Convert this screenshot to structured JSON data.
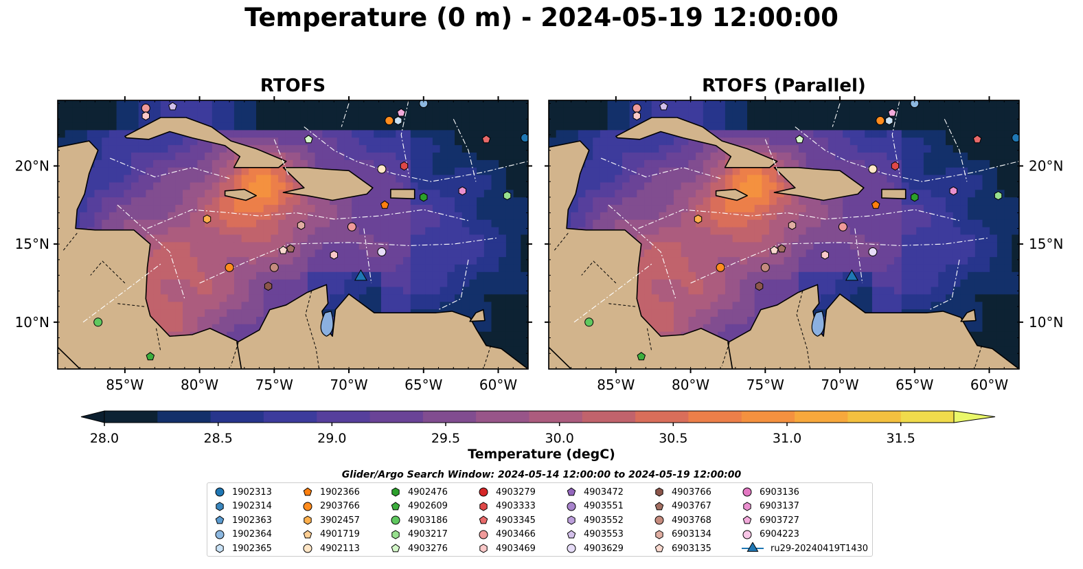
{
  "figure": {
    "title": "Temperature (0 m) - 2024-05-19 12:00:00",
    "colorbar_label": "Temperature (degC)",
    "search_window": "Glider/Argo Search Window: 2024-05-14 12:00:00 to 2024-05-19 12:00:00",
    "land_color": "#d2b48c",
    "lake_color": "#8bb0e0"
  },
  "chart_data": [
    {
      "type": "heatmap",
      "title": "RTOFS",
      "lon_range": [
        -89.5,
        -58
      ],
      "lat_range": [
        7,
        24.2
      ],
      "xticks": [
        -85,
        -80,
        -75,
        -70,
        -65,
        -60
      ],
      "xtick_labels": [
        "85°W",
        "80°W",
        "75°W",
        "70°W",
        "65°W",
        "60°W"
      ],
      "yticks": [
        10,
        15,
        20
      ],
      "ytick_labels": [
        "10°N",
        "15°N",
        "20°N"
      ]
    },
    {
      "type": "heatmap",
      "title": "RTOFS (Parallel)",
      "lon_range": [
        -89.5,
        -58
      ],
      "lat_range": [
        7,
        24.2
      ],
      "xticks": [
        -85,
        -80,
        -75,
        -70,
        -65,
        -60
      ],
      "xtick_labels": [
        "85°W",
        "80°W",
        "75°W",
        "70°W",
        "65°W",
        "60°W"
      ],
      "yticks": [
        10,
        15,
        20
      ],
      "ytick_labels": [
        "10°N",
        "15°N",
        "20°N"
      ]
    }
  ],
  "colorbar": {
    "min": 28.0,
    "max": 31.5,
    "step": 0.25,
    "ticks": [
      "28.0",
      "28.5",
      "29.0",
      "29.5",
      "30.0",
      "30.5",
      "31.0",
      "31.5"
    ],
    "under_color": "#0b1e2e",
    "over_color": "#eaf86a",
    "colors": [
      "#0d2233",
      "#13306a",
      "#27358c",
      "#3d3b9c",
      "#563f9c",
      "#6a4397",
      "#814d90",
      "#985589",
      "#ac5c7e",
      "#c1636c",
      "#d96e5a",
      "#ec7f49",
      "#f4913f",
      "#f7a83c",
      "#f3c03f",
      "#f0db4b"
    ]
  },
  "platforms": [
    {
      "id": "1902313",
      "marker": "circle",
      "color": "#1f77b4"
    },
    {
      "id": "1902314",
      "marker": "hexagon",
      "color": "#3a86bd"
    },
    {
      "id": "1902363",
      "marker": "pentagon",
      "color": "#5b9bd0"
    },
    {
      "id": "1902364",
      "marker": "circle",
      "color": "#8db8e0"
    },
    {
      "id": "1902365",
      "marker": "hexagon",
      "color": "#c9e2f6"
    },
    {
      "id": "1902366",
      "marker": "pentagon",
      "color": "#ff7f0e"
    },
    {
      "id": "2903766",
      "marker": "circle",
      "color": "#ff8c1e"
    },
    {
      "id": "3902457",
      "marker": "hexagon",
      "color": "#ffb04d"
    },
    {
      "id": "4901719",
      "marker": "pentagon",
      "color": "#ffcf94"
    },
    {
      "id": "4902113",
      "marker": "circle",
      "color": "#ffe6c6"
    },
    {
      "id": "4902476",
      "marker": "hexagon",
      "color": "#2ca02c"
    },
    {
      "id": "4902609",
      "marker": "pentagon",
      "color": "#3dae3d"
    },
    {
      "id": "4903186",
      "marker": "circle",
      "color": "#5fc85f"
    },
    {
      "id": "4903217",
      "marker": "hexagon",
      "color": "#98e08f"
    },
    {
      "id": "4903276",
      "marker": "pentagon",
      "color": "#d4f7c9"
    },
    {
      "id": "4903279",
      "marker": "circle",
      "color": "#d62728"
    },
    {
      "id": "4903333",
      "marker": "hexagon",
      "color": "#df4848"
    },
    {
      "id": "4903345",
      "marker": "pentagon",
      "color": "#e86a6a"
    },
    {
      "id": "4903466",
      "marker": "circle",
      "color": "#f09a9a"
    },
    {
      "id": "4903469",
      "marker": "hexagon",
      "color": "#fbc9c9"
    },
    {
      "id": "4903472",
      "marker": "pentagon",
      "color": "#9467bd"
    },
    {
      "id": "4903551",
      "marker": "circle",
      "color": "#a884cc"
    },
    {
      "id": "4903552",
      "marker": "hexagon",
      "color": "#bc9fdb"
    },
    {
      "id": "4903553",
      "marker": "pentagon",
      "color": "#d3c0ea"
    },
    {
      "id": "4903629",
      "marker": "circle",
      "color": "#e6dcf7"
    },
    {
      "id": "4903766",
      "marker": "hexagon",
      "color": "#8c564b"
    },
    {
      "id": "4903767",
      "marker": "pentagon",
      "color": "#a36f62"
    },
    {
      "id": "4903768",
      "marker": "circle",
      "color": "#c58b7e"
    },
    {
      "id": "6903134",
      "marker": "hexagon",
      "color": "#e0aea2"
    },
    {
      "id": "6903135",
      "marker": "pentagon",
      "color": "#f8d8ce"
    },
    {
      "id": "6903136",
      "marker": "circle",
      "color": "#e377c2"
    },
    {
      "id": "6903137",
      "marker": "hexagon",
      "color": "#ea90cf"
    },
    {
      "id": "6903727",
      "marker": "pentagon",
      "color": "#f2aadb"
    },
    {
      "id": "6904223",
      "marker": "circle",
      "color": "#f7c6e6"
    },
    {
      "id": "ru29-20240419T1430",
      "marker": "glider",
      "color": "#1f77b4"
    }
  ],
  "positions": [
    {
      "id": "4902609",
      "lon": -83.3,
      "lat": 7.8
    },
    {
      "id": "4903186",
      "lon": -86.8,
      "lat": 10.0
    },
    {
      "id": "3902457",
      "lon": -79.5,
      "lat": 16.6
    },
    {
      "id": "2903766",
      "lon": -78.0,
      "lat": 13.5
    },
    {
      "id": "4903766",
      "lon": -75.4,
      "lat": 12.3
    },
    {
      "id": "4903768",
      "lon": -75.0,
      "lat": 13.5
    },
    {
      "id": "6903134",
      "lon": -73.2,
      "lat": 16.2
    },
    {
      "id": "6903135",
      "lon": -74.4,
      "lat": 14.6
    },
    {
      "id": "4903767",
      "lon": -73.9,
      "lat": 14.7
    },
    {
      "id": "4903466",
      "lon": -69.8,
      "lat": 16.1
    },
    {
      "id": "4903469",
      "lon": -71.0,
      "lat": 14.3
    },
    {
      "id": "4903629",
      "lon": -67.8,
      "lat": 14.5
    },
    {
      "id": "ru29-20240419T1430",
      "lon": -69.2,
      "lat": 12.9
    },
    {
      "id": "4902113",
      "lon": -67.8,
      "lat": 19.8
    },
    {
      "id": "4903333",
      "lon": -66.3,
      "lat": 20.0
    },
    {
      "id": "1902366",
      "lon": -67.6,
      "lat": 17.5
    },
    {
      "id": "4902476",
      "lon": -65.0,
      "lat": 18.0
    },
    {
      "id": "6903137",
      "lon": -62.4,
      "lat": 18.4
    },
    {
      "id": "4903217",
      "lon": -59.4,
      "lat": 18.1
    },
    {
      "id": "4903345",
      "lon": -60.8,
      "lat": 21.7
    },
    {
      "id": "1902364",
      "lon": -65.0,
      "lat": 24.0
    },
    {
      "id": "1902313",
      "lon": -58.2,
      "lat": 21.8
    },
    {
      "id": "2903766",
      "lon": -67.3,
      "lat": 22.9
    },
    {
      "id": "1902365",
      "lon": -66.7,
      "lat": 22.9
    },
    {
      "id": "6903727",
      "lon": -66.5,
      "lat": 23.4
    },
    {
      "id": "4903276",
      "lon": -72.7,
      "lat": 21.7
    },
    {
      "id": "4903466",
      "lon": -83.6,
      "lat": 23.7
    },
    {
      "id": "4903469",
      "lon": -83.6,
      "lat": 23.2
    },
    {
      "id": "4903553",
      "lon": -81.8,
      "lat": 23.8
    }
  ]
}
